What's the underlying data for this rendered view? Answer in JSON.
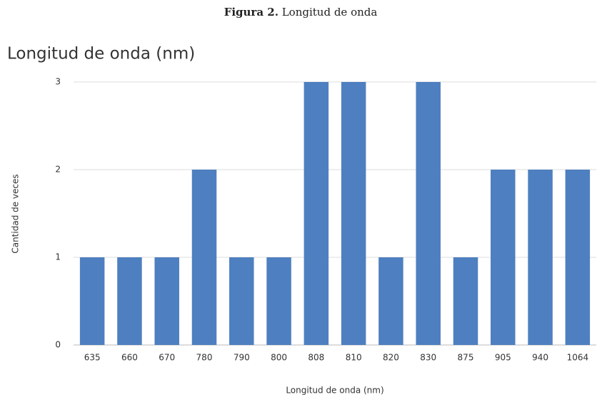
{
  "figure_label": "Figura 2.",
  "figure_caption": "Longitud de onda",
  "chart_data": {
    "type": "bar",
    "title": "Longitud de onda (nm)",
    "x_label": "Longitud de onda (nm)",
    "y_label": "Cantidad de veces",
    "categories": [
      "635",
      "660",
      "670",
      "780",
      "790",
      "800",
      "808",
      "810",
      "820",
      "830",
      "875",
      "905",
      "940",
      "1064"
    ],
    "values": [
      1,
      1,
      1,
      2,
      1,
      1,
      3,
      3,
      1,
      3,
      1,
      2,
      2,
      2
    ],
    "color": "#4e7fc0",
    "ylim": [
      0,
      3
    ],
    "yticks": [
      0,
      1,
      2,
      3
    ],
    "grid": true
  }
}
